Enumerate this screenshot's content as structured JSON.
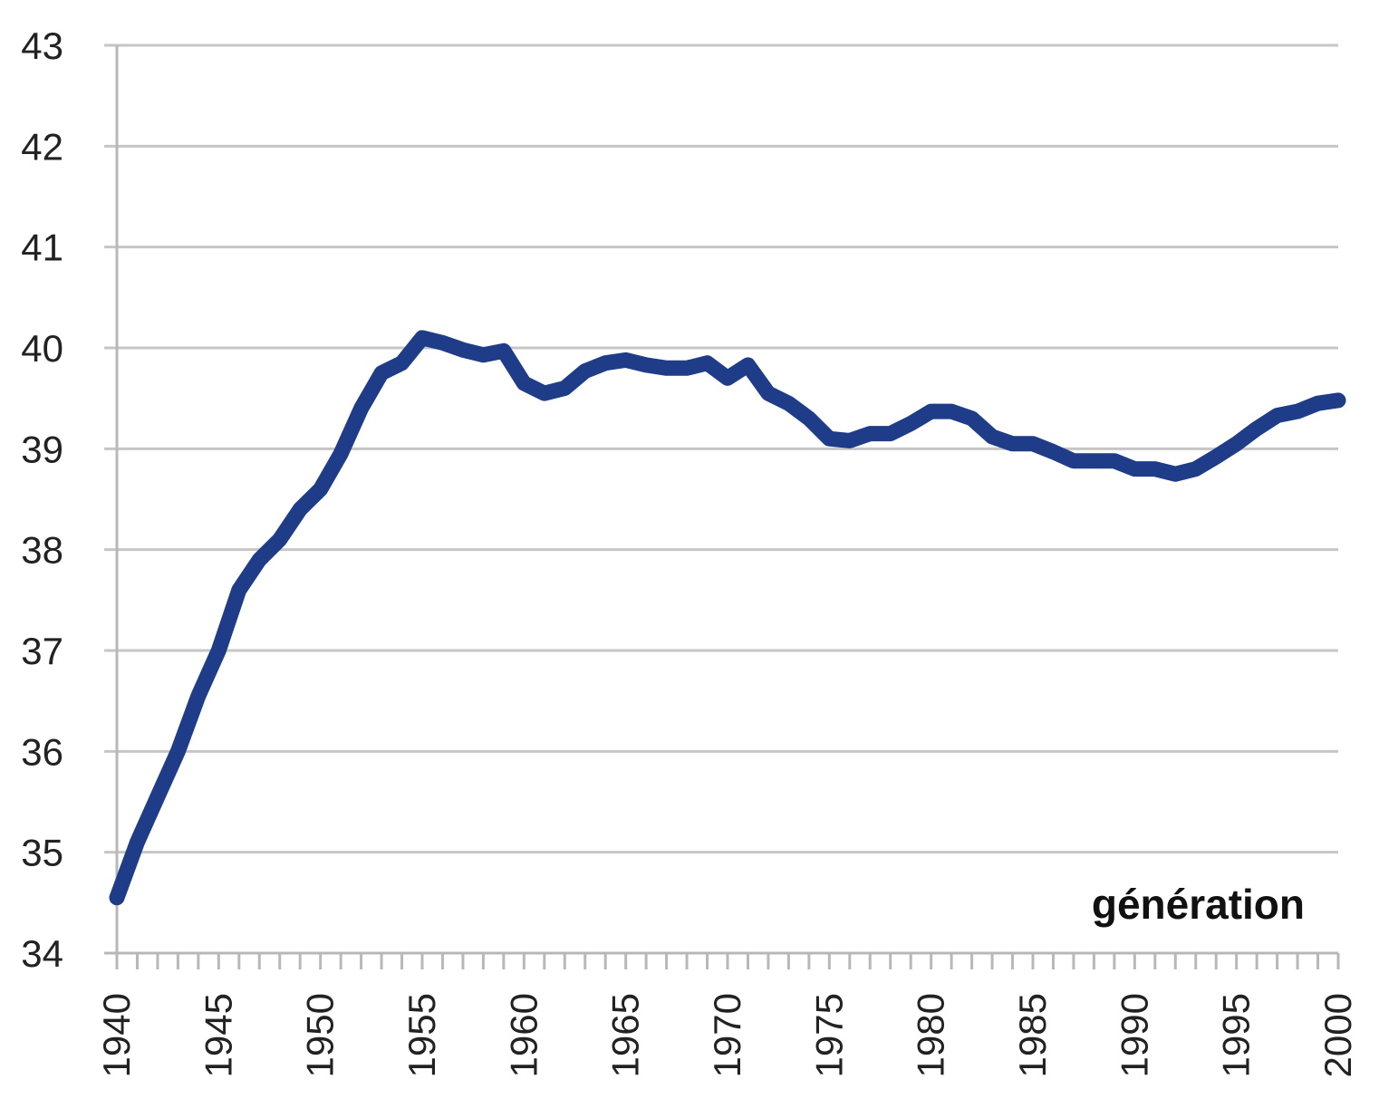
{
  "chart_data": {
    "type": "line",
    "xlabel": "génération",
    "ylabel": "",
    "title": "",
    "xlim": [
      1940,
      2000
    ],
    "ylim": [
      34,
      43
    ],
    "yticks": [
      34,
      35,
      36,
      37,
      38,
      39,
      40,
      41,
      42,
      43
    ],
    "xticks": [
      1940,
      1945,
      1950,
      1955,
      1960,
      1965,
      1970,
      1975,
      1980,
      1985,
      1990,
      1995,
      2000
    ],
    "grid": true,
    "legend": false,
    "colors": {
      "line": "#1f3c88",
      "grid": "#c6c6c6"
    },
    "series": [
      {
        "x": [
          1940,
          1941,
          1942,
          1943,
          1944,
          1945,
          1946,
          1947,
          1948,
          1949,
          1950,
          1951,
          1952,
          1953,
          1954,
          1955,
          1956,
          1957,
          1958,
          1959,
          1960,
          1961,
          1962,
          1963,
          1964,
          1965,
          1966,
          1967,
          1968,
          1969,
          1970,
          1971,
          1972,
          1973,
          1974,
          1975,
          1976,
          1977,
          1978,
          1979,
          1980,
          1981,
          1982,
          1983,
          1984,
          1985,
          1986,
          1987,
          1988,
          1989,
          1990,
          1991,
          1992,
          1993,
          1994,
          1995,
          1996,
          1997,
          1998,
          1999,
          2000
        ],
        "values": [
          34.55,
          35.1,
          35.55,
          36.0,
          36.55,
          37.0,
          37.6,
          37.9,
          38.1,
          38.4,
          38.6,
          38.95,
          39.4,
          39.75,
          39.85,
          40.1,
          40.05,
          39.98,
          39.93,
          39.97,
          39.65,
          39.55,
          39.6,
          39.77,
          39.85,
          39.88,
          39.83,
          39.8,
          39.8,
          39.85,
          39.7,
          39.83,
          39.55,
          39.45,
          39.3,
          39.1,
          39.08,
          39.15,
          39.15,
          39.25,
          39.37,
          39.37,
          39.3,
          39.12,
          39.05,
          39.05,
          38.97,
          38.88,
          38.88,
          38.88,
          38.8,
          38.8,
          38.75,
          38.8,
          38.92,
          39.05,
          39.2,
          39.33,
          39.37,
          39.45,
          39.48
        ]
      }
    ]
  }
}
